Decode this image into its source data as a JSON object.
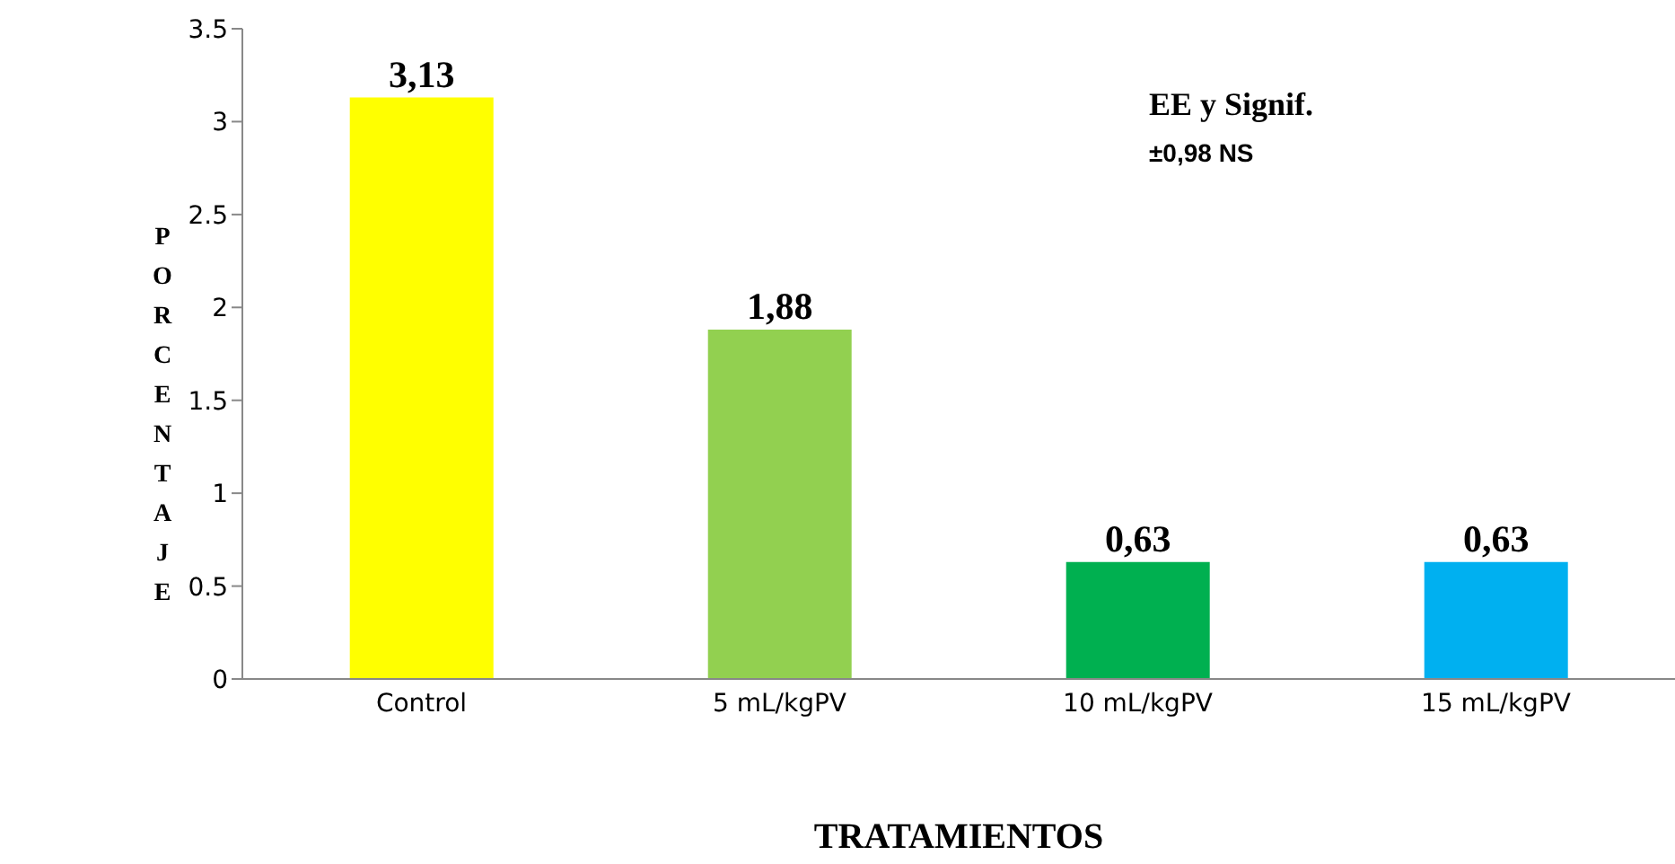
{
  "chart_data": {
    "type": "bar",
    "xlabel": "TRATAMIENTOS",
    "ylabel": "PORCENTAJE",
    "categories": [
      "Control",
      "5 mL/kgPV",
      "10 mL/kgPV",
      "15 mL/kgPV"
    ],
    "values": [
      3.13,
      1.88,
      0.63,
      0.63
    ],
    "colors": [
      "#ffff00",
      "#92d050",
      "#00b050",
      "#00b0f0"
    ],
    "value_labels": [
      "3,13",
      "1,88",
      "0,63",
      "0,63"
    ],
    "ylim": [
      0,
      3.5
    ],
    "yticks": [
      0,
      0.5,
      1,
      1.5,
      2,
      2.5,
      3,
      3.5
    ],
    "grid": false,
    "annotations": [
      "EE y Signif.",
      "±0,98 NS"
    ]
  }
}
